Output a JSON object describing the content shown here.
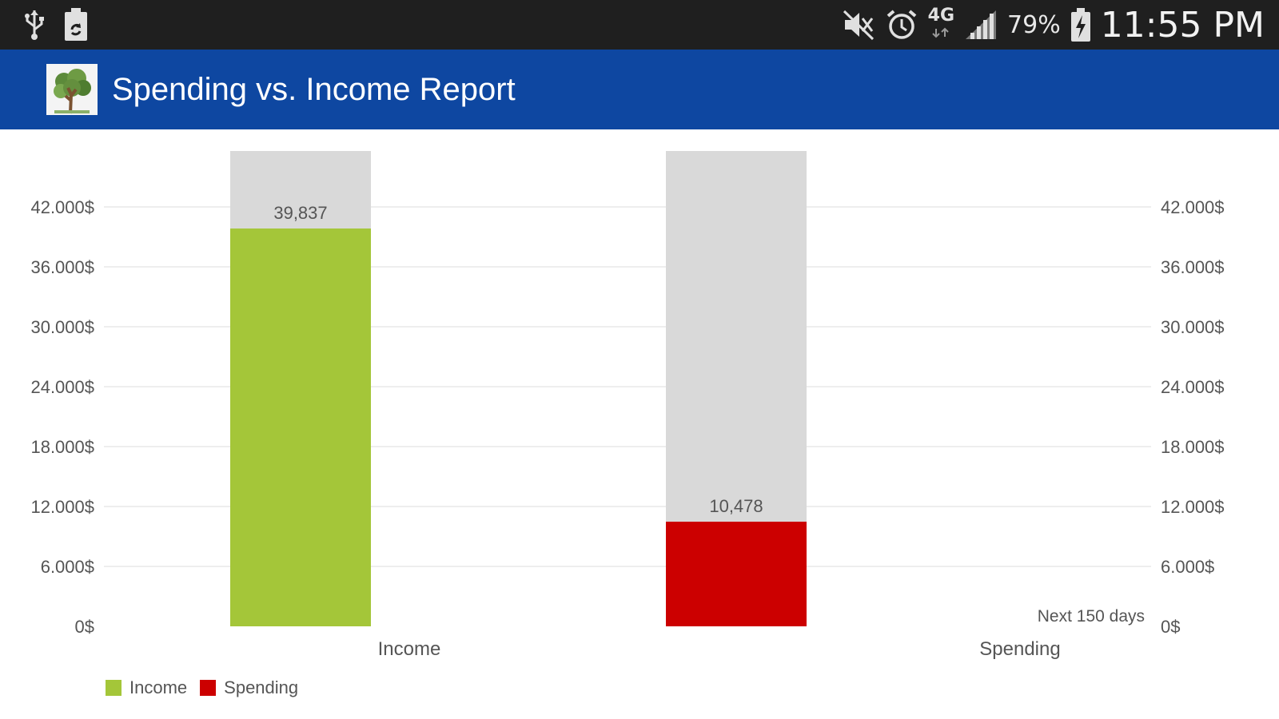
{
  "status_bar": {
    "icons_left": [
      "usb-icon",
      "recycle-battery-icon"
    ],
    "icons_right": [
      "mute-icon",
      "alarm-icon",
      "network-4g-icon",
      "signal-icon",
      "battery-charging-icon"
    ],
    "network_label": "4G",
    "battery_percent": "79%",
    "time": "11:55 PM"
  },
  "action_bar": {
    "title": "Spending vs. Income Report",
    "icon": "money-tree-icon",
    "color": "#0e47a1"
  },
  "chart_data": {
    "type": "bar",
    "categories": [
      "Income",
      "Spending"
    ],
    "series": [
      {
        "name": "Income",
        "values": [
          39837,
          0
        ],
        "color": "#a4c639"
      },
      {
        "name": "Spending",
        "values": [
          0,
          10478
        ],
        "color": "#cc0000"
      }
    ],
    "data_labels": [
      "39,837",
      "10,478"
    ],
    "background_bar_color": "#d9d9d9",
    "ylim": [
      0,
      48000
    ],
    "yticks": [
      0,
      6000,
      12000,
      18000,
      24000,
      30000,
      36000,
      42000
    ],
    "ytick_labels": [
      "0$",
      "6.000$",
      "12.000$",
      "18.000$",
      "24.000$",
      "30.000$",
      "36.000$",
      "42.000$"
    ],
    "annotation": "Next 150 days",
    "grid": true,
    "legend_position": "bottom-left",
    "legend": [
      {
        "label": "Income",
        "color": "#a4c639"
      },
      {
        "label": "Spending",
        "color": "#cc0000"
      }
    ]
  }
}
